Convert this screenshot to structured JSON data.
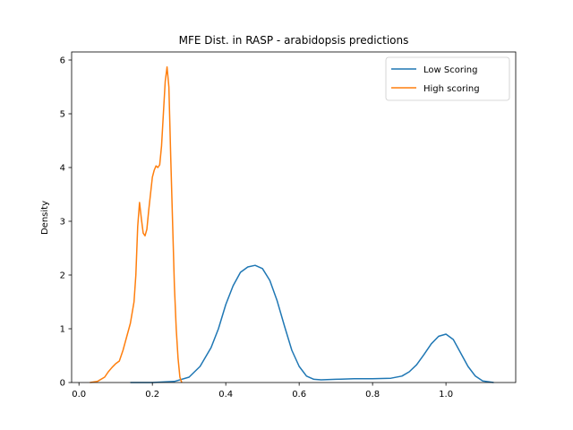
{
  "chart_data": {
    "type": "line",
    "title": "MFE Dist. in RASP - arabidopsis predictions",
    "xlabel": "",
    "ylabel": "Density",
    "xlim": [
      -0.02,
      1.19
    ],
    "ylim": [
      0,
      6.15
    ],
    "xticks": [
      0.0,
      0.2,
      0.4,
      0.6,
      0.8,
      1.0
    ],
    "xtick_labels": [
      "0.0",
      "0.2",
      "0.4",
      "0.6",
      "0.8",
      "1.0"
    ],
    "yticks": [
      0,
      1,
      2,
      3,
      4,
      5,
      6
    ],
    "ytick_labels": [
      "0",
      "1",
      "2",
      "3",
      "4",
      "5",
      "6"
    ],
    "grid": false,
    "legend_position": "upper right",
    "series": [
      {
        "name": "Low Scoring",
        "color": "#1f77b4",
        "x": [
          0.14,
          0.2,
          0.26,
          0.3,
          0.33,
          0.36,
          0.38,
          0.4,
          0.42,
          0.44,
          0.46,
          0.48,
          0.5,
          0.52,
          0.54,
          0.56,
          0.58,
          0.6,
          0.62,
          0.64,
          0.66,
          0.7,
          0.75,
          0.8,
          0.85,
          0.88,
          0.9,
          0.92,
          0.94,
          0.96,
          0.98,
          1.0,
          1.02,
          1.04,
          1.06,
          1.08,
          1.1,
          1.13
        ],
        "y": [
          0.0,
          0.0,
          0.02,
          0.1,
          0.3,
          0.65,
          1.0,
          1.45,
          1.8,
          2.05,
          2.15,
          2.18,
          2.12,
          1.9,
          1.52,
          1.05,
          0.6,
          0.3,
          0.12,
          0.06,
          0.05,
          0.06,
          0.07,
          0.07,
          0.08,
          0.12,
          0.2,
          0.33,
          0.52,
          0.72,
          0.86,
          0.9,
          0.8,
          0.55,
          0.3,
          0.12,
          0.03,
          0.0
        ]
      },
      {
        "name": "High scoring",
        "color": "#ff7f0e",
        "x": [
          0.03,
          0.05,
          0.07,
          0.08,
          0.09,
          0.1,
          0.11,
          0.12,
          0.13,
          0.14,
          0.15,
          0.155,
          0.16,
          0.165,
          0.17,
          0.175,
          0.18,
          0.185,
          0.19,
          0.2,
          0.205,
          0.21,
          0.215,
          0.22,
          0.225,
          0.23,
          0.235,
          0.24,
          0.245,
          0.25,
          0.255,
          0.26,
          0.265,
          0.27,
          0.275,
          0.28
        ],
        "y": [
          0.0,
          0.02,
          0.1,
          0.2,
          0.28,
          0.35,
          0.4,
          0.6,
          0.85,
          1.1,
          1.5,
          2.0,
          2.9,
          3.35,
          3.05,
          2.78,
          2.73,
          2.85,
          3.2,
          3.82,
          3.95,
          4.03,
          4.0,
          4.05,
          4.4,
          5.0,
          5.6,
          5.87,
          5.5,
          4.2,
          3.0,
          1.8,
          1.0,
          0.45,
          0.1,
          0.0
        ]
      }
    ]
  }
}
